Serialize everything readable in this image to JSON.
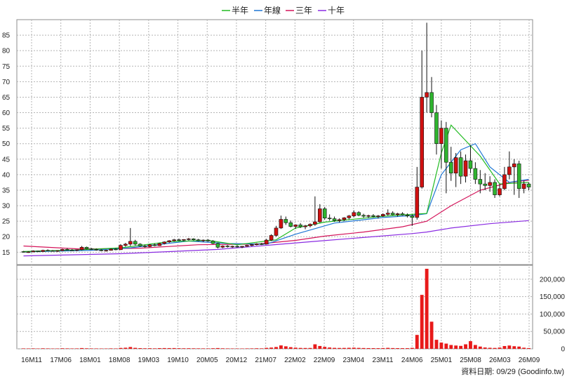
{
  "chart_data": {
    "type": "candlestick",
    "legend": [
      {
        "name": "半年",
        "color": "#22bb22"
      },
      {
        "name": "年線",
        "color": "#1f77d4"
      },
      {
        "name": "三年",
        "color": "#d4145a"
      },
      {
        "name": "十年",
        "color": "#8a2be2"
      }
    ],
    "legend_placement": "top-center",
    "colors": {
      "up": "#d01010",
      "down": "#2fb42f",
      "volume": "#e81a1a"
    },
    "price_axis": {
      "ylim": [
        11,
        90
      ],
      "ticks": [
        15,
        20,
        25,
        30,
        35,
        40,
        45,
        50,
        55,
        60,
        65,
        70,
        75,
        80,
        85
      ]
    },
    "volume_axis": {
      "ylim": [
        0,
        240000
      ],
      "ticks": [
        0,
        50000,
        100000,
        150000,
        200000
      ],
      "tick_labels": [
        "0",
        "50,000",
        "100,000",
        "150,000",
        "200,000"
      ]
    },
    "x_labels": [
      "16M11",
      "17M06",
      "18M01",
      "18M08",
      "19M03",
      "19M10",
      "20M05",
      "20M12",
      "21M07",
      "22M02",
      "22M09",
      "23M04",
      "23M11",
      "24M06",
      "25M01",
      "25M08",
      "26M03",
      "26M09"
    ],
    "grid": true,
    "footer_text": "資料日期: 09/29  (Goodinfo.tw)",
    "candles": [
      [
        15.2,
        15.4,
        14.9,
        15.0,
        1200
      ],
      [
        15.0,
        15.3,
        14.8,
        15.1,
        1100
      ],
      [
        15.1,
        15.6,
        15.0,
        15.4,
        1300
      ],
      [
        15.4,
        15.5,
        15.0,
        15.2,
        1000
      ],
      [
        15.2,
        15.8,
        15.1,
        15.6,
        1500
      ],
      [
        15.6,
        15.9,
        15.3,
        15.5,
        1200
      ],
      [
        15.5,
        15.7,
        15.2,
        15.3,
        900
      ],
      [
        15.3,
        15.6,
        15.1,
        15.5,
        1000
      ],
      [
        15.5,
        16.1,
        15.4,
        15.9,
        1600
      ],
      [
        15.9,
        16.3,
        15.6,
        15.7,
        1300
      ],
      [
        15.7,
        16.0,
        15.4,
        15.6,
        1100
      ],
      [
        15.6,
        15.9,
        15.3,
        15.8,
        1200
      ],
      [
        15.8,
        17.0,
        15.6,
        16.6,
        2200
      ],
      [
        16.6,
        16.8,
        15.9,
        16.1,
        1500
      ],
      [
        16.1,
        16.4,
        15.7,
        15.9,
        1200
      ],
      [
        15.9,
        16.2,
        15.5,
        15.7,
        1100
      ],
      [
        15.7,
        16.0,
        15.3,
        15.5,
        1000
      ],
      [
        15.5,
        15.8,
        15.2,
        15.6,
        1000
      ],
      [
        15.6,
        16.2,
        15.5,
        16.0,
        1300
      ],
      [
        16.0,
        16.3,
        15.6,
        15.8,
        1100
      ],
      [
        15.8,
        17.6,
        15.7,
        17.2,
        2600
      ],
      [
        17.2,
        18.0,
        16.8,
        17.6,
        3200
      ],
      [
        17.6,
        22.8,
        17.0,
        18.5,
        5200
      ],
      [
        18.5,
        19.0,
        17.2,
        17.6,
        2800
      ],
      [
        17.6,
        17.9,
        16.7,
        17.0,
        2000
      ],
      [
        17.0,
        17.4,
        16.5,
        16.8,
        1600
      ],
      [
        16.8,
        17.6,
        16.6,
        17.4,
        1800
      ],
      [
        17.4,
        17.8,
        16.9,
        17.1,
        1400
      ],
      [
        17.1,
        18.0,
        17.0,
        17.8,
        2000
      ],
      [
        17.8,
        18.5,
        17.5,
        18.3,
        2200
      ],
      [
        18.3,
        18.9,
        18.0,
        18.7,
        2100
      ],
      [
        18.7,
        19.3,
        18.4,
        19.0,
        2200
      ],
      [
        19.0,
        19.4,
        18.6,
        18.9,
        1800
      ],
      [
        18.9,
        19.2,
        18.5,
        19.1,
        1600
      ],
      [
        19.1,
        19.6,
        18.8,
        19.3,
        1700
      ],
      [
        19.3,
        19.5,
        18.8,
        19.0,
        1500
      ],
      [
        19.0,
        19.3,
        18.5,
        18.7,
        1400
      ],
      [
        18.7,
        19.1,
        18.3,
        18.9,
        1300
      ],
      [
        18.9,
        19.2,
        18.4,
        18.6,
        1200
      ],
      [
        18.6,
        18.9,
        17.6,
        17.8,
        1700
      ],
      [
        17.8,
        18.1,
        16.2,
        16.6,
        2200
      ],
      [
        16.6,
        17.2,
        16.3,
        17.0,
        1500
      ],
      [
        17.0,
        17.3,
        16.5,
        16.8,
        1200
      ],
      [
        16.8,
        17.1,
        16.4,
        16.9,
        1100
      ],
      [
        16.9,
        17.2,
        16.5,
        16.7,
        1000
      ],
      [
        16.7,
        17.0,
        16.3,
        16.9,
        1000
      ],
      [
        16.9,
        17.4,
        16.7,
        17.2,
        1200
      ],
      [
        17.2,
        17.6,
        16.9,
        17.4,
        1300
      ],
      [
        17.4,
        17.9,
        17.2,
        17.7,
        1600
      ],
      [
        17.7,
        18.0,
        17.3,
        17.6,
        1400
      ],
      [
        17.6,
        19.3,
        17.5,
        18.9,
        2800
      ],
      [
        18.9,
        20.8,
        18.6,
        20.4,
        3600
      ],
      [
        20.4,
        23.5,
        20.0,
        22.8,
        5200
      ],
      [
        22.8,
        26.8,
        22.5,
        25.6,
        9800
      ],
      [
        25.6,
        26.5,
        23.8,
        24.5,
        7200
      ],
      [
        24.5,
        25.2,
        23.0,
        23.3,
        4800
      ],
      [
        23.3,
        24.0,
        22.5,
        23.8,
        3400
      ],
      [
        23.8,
        24.4,
        22.8,
        23.2,
        2600
      ],
      [
        23.2,
        23.8,
        22.4,
        23.5,
        2400
      ],
      [
        23.5,
        24.3,
        23.0,
        24.0,
        2500
      ],
      [
        24.0,
        33.0,
        23.5,
        24.8,
        13000
      ],
      [
        24.8,
        30.5,
        24.5,
        29.0,
        8200
      ],
      [
        29.0,
        29.6,
        25.5,
        26.0,
        5600
      ],
      [
        26.0,
        27.2,
        25.2,
        25.8,
        3800
      ],
      [
        25.8,
        26.5,
        24.8,
        25.2,
        2800
      ],
      [
        25.2,
        25.9,
        24.6,
        25.5,
        2500
      ],
      [
        25.5,
        26.3,
        25.0,
        26.1,
        2600
      ],
      [
        26.1,
        27.0,
        25.6,
        26.7,
        2900
      ],
      [
        26.7,
        28.5,
        26.3,
        27.8,
        3300
      ],
      [
        27.8,
        28.2,
        26.6,
        26.9,
        2700
      ],
      [
        26.9,
        27.4,
        26.1,
        26.6,
        2300
      ],
      [
        26.6,
        27.1,
        26.0,
        26.8,
        2100
      ],
      [
        26.8,
        27.3,
        26.2,
        26.5,
        2000
      ],
      [
        26.5,
        27.0,
        25.9,
        26.7,
        1900
      ],
      [
        26.7,
        27.5,
        26.4,
        27.2,
        2200
      ],
      [
        27.2,
        28.8,
        26.8,
        27.6,
        2800
      ],
      [
        27.6,
        28.2,
        26.9,
        27.1,
        2200
      ],
      [
        27.1,
        27.7,
        26.5,
        27.4,
        2000
      ],
      [
        27.4,
        27.9,
        26.8,
        27.0,
        1900
      ],
      [
        27.0,
        27.5,
        26.2,
        26.7,
        1900
      ],
      [
        26.7,
        27.2,
        23.5,
        26.2,
        2800
      ],
      [
        26.2,
        42.5,
        25.5,
        36.0,
        40000
      ],
      [
        36.0,
        80.0,
        35.5,
        65.0,
        155000
      ],
      [
        65.0,
        89.0,
        60.0,
        66.5,
        230000
      ],
      [
        66.5,
        71.5,
        58.5,
        60.0,
        78000
      ],
      [
        60.0,
        62.5,
        46.5,
        50.0,
        26000
      ],
      [
        50.0,
        57.5,
        42.0,
        55.0,
        18000
      ],
      [
        55.0,
        57.0,
        34.0,
        44.0,
        15000
      ],
      [
        44.0,
        49.0,
        38.0,
        40.5,
        11000
      ],
      [
        40.5,
        47.0,
        36.0,
        45.5,
        9500
      ],
      [
        45.5,
        47.5,
        37.0,
        39.5,
        8500
      ],
      [
        39.5,
        46.5,
        37.5,
        44.5,
        13000
      ],
      [
        44.5,
        49.5,
        40.5,
        42.0,
        22000
      ],
      [
        42.0,
        44.0,
        37.0,
        38.5,
        11000
      ],
      [
        38.5,
        41.5,
        34.0,
        37.0,
        6500
      ],
      [
        37.0,
        40.5,
        35.0,
        36.5,
        3800
      ],
      [
        36.5,
        39.5,
        34.5,
        37.5,
        3000
      ],
      [
        37.5,
        38.5,
        32.5,
        33.5,
        2600
      ],
      [
        33.5,
        37.0,
        33.0,
        35.5,
        3600
      ],
      [
        35.5,
        42.5,
        35.0,
        40.0,
        8000
      ],
      [
        40.0,
        47.5,
        38.5,
        42.5,
        9500
      ],
      [
        42.5,
        45.0,
        33.5,
        43.5,
        7500
      ],
      [
        43.5,
        44.5,
        32.5,
        35.5,
        6500
      ],
      [
        35.5,
        38.0,
        34.0,
        37.0,
        3200
      ],
      [
        37.0,
        37.5,
        35.0,
        36.0,
        2200
      ]
    ],
    "ma_half_year": [
      [
        0,
        15.2
      ],
      [
        12,
        15.8
      ],
      [
        20,
        16.4
      ],
      [
        30,
        18.4
      ],
      [
        38,
        18.8
      ],
      [
        44,
        17.4
      ],
      [
        52,
        19.0
      ],
      [
        56,
        22.8
      ],
      [
        62,
        24.7
      ],
      [
        74,
        26.6
      ],
      [
        80,
        27.2
      ],
      [
        83,
        27.5
      ],
      [
        86,
        47.0
      ],
      [
        88,
        56.0
      ],
      [
        94,
        46.0
      ],
      [
        98,
        37.0
      ],
      [
        104,
        37.5
      ]
    ],
    "ma_year": [
      [
        0,
        15.1
      ],
      [
        14,
        15.6
      ],
      [
        22,
        16.4
      ],
      [
        34,
        18.6
      ],
      [
        42,
        17.8
      ],
      [
        50,
        17.6
      ],
      [
        56,
        20.8
      ],
      [
        64,
        24.4
      ],
      [
        74,
        26.2
      ],
      [
        80,
        26.8
      ],
      [
        83,
        27.4
      ],
      [
        86,
        40.0
      ],
      [
        90,
        48.0
      ],
      [
        93,
        50.0
      ],
      [
        96,
        42.5
      ],
      [
        100,
        37.5
      ],
      [
        104,
        38.5
      ]
    ],
    "ma_three_year": [
      [
        0,
        17.0
      ],
      [
        12,
        16.0
      ],
      [
        24,
        16.3
      ],
      [
        36,
        17.4
      ],
      [
        48,
        17.6
      ],
      [
        56,
        18.8
      ],
      [
        62,
        20.2
      ],
      [
        70,
        21.5
      ],
      [
        78,
        23.2
      ],
      [
        83,
        25.0
      ],
      [
        88,
        30.0
      ],
      [
        94,
        35.0
      ],
      [
        100,
        37.5
      ],
      [
        104,
        38.2
      ]
    ],
    "ma_ten_year": [
      [
        0,
        13.8
      ],
      [
        20,
        14.5
      ],
      [
        40,
        15.9
      ],
      [
        60,
        18.5
      ],
      [
        80,
        21.0
      ],
      [
        83,
        21.5
      ],
      [
        88,
        22.8
      ],
      [
        96,
        24.2
      ],
      [
        104,
        25.2
      ]
    ]
  }
}
